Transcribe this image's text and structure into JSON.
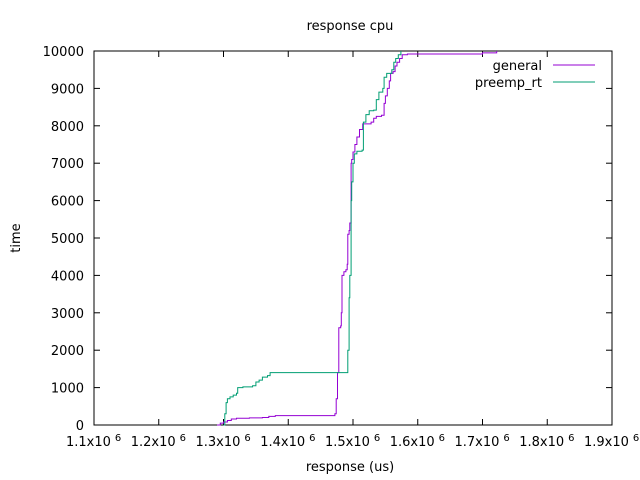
{
  "chart_data": {
    "type": "line",
    "title": "response cpu",
    "xlabel": "response (us)",
    "ylabel": "time",
    "xlim": [
      1100000,
      1900000
    ],
    "ylim": [
      0,
      10000
    ],
    "x_ticks": [
      {
        "value": 1100000,
        "base": "1.1x10",
        "exp": "6"
      },
      {
        "value": 1200000,
        "base": "1.2x10",
        "exp": "6"
      },
      {
        "value": 1300000,
        "base": "1.3x10",
        "exp": "6"
      },
      {
        "value": 1400000,
        "base": "1.4x10",
        "exp": "6"
      },
      {
        "value": 1500000,
        "base": "1.5x10",
        "exp": "6"
      },
      {
        "value": 1600000,
        "base": "1.6x10",
        "exp": "6"
      },
      {
        "value": 1700000,
        "base": "1.7x10",
        "exp": "6"
      },
      {
        "value": 1800000,
        "base": "1.8x10",
        "exp": "6"
      },
      {
        "value": 1900000,
        "base": "1.9x10",
        "exp": "6"
      }
    ],
    "y_ticks": [
      "0",
      "1000",
      "2000",
      "3000",
      "4000",
      "5000",
      "6000",
      "7000",
      "8000",
      "9000",
      "10000"
    ],
    "grid": false,
    "legend_position": "top-right",
    "series": [
      {
        "name": "general",
        "color": "#9400d3",
        "points": [
          [
            1290000,
            0
          ],
          [
            1295000,
            50
          ],
          [
            1300000,
            80
          ],
          [
            1306000,
            120
          ],
          [
            1312000,
            160
          ],
          [
            1320000,
            180
          ],
          [
            1340000,
            190
          ],
          [
            1360000,
            200
          ],
          [
            1370000,
            230
          ],
          [
            1380000,
            250
          ],
          [
            1420000,
            250
          ],
          [
            1450000,
            250
          ],
          [
            1470000,
            250
          ],
          [
            1472000,
            300
          ],
          [
            1474000,
            700
          ],
          [
            1476000,
            1400
          ],
          [
            1478000,
            2600
          ],
          [
            1481000,
            2650
          ],
          [
            1482000,
            3000
          ],
          [
            1483000,
            4000
          ],
          [
            1486000,
            4100
          ],
          [
            1489000,
            4150
          ],
          [
            1491000,
            4300
          ],
          [
            1492000,
            5100
          ],
          [
            1494000,
            5200
          ],
          [
            1495000,
            5400
          ],
          [
            1497000,
            7000
          ],
          [
            1498000,
            7100
          ],
          [
            1500000,
            7300
          ],
          [
            1503000,
            7500
          ],
          [
            1506000,
            7700
          ],
          [
            1510000,
            7900
          ],
          [
            1515000,
            8050
          ],
          [
            1520000,
            8050
          ],
          [
            1528000,
            8100
          ],
          [
            1532000,
            8200
          ],
          [
            1536000,
            8250
          ],
          [
            1544000,
            8280
          ],
          [
            1548000,
            8600
          ],
          [
            1550000,
            8800
          ],
          [
            1553000,
            9000
          ],
          [
            1556000,
            9200
          ],
          [
            1558000,
            9400
          ],
          [
            1562000,
            9450
          ],
          [
            1565000,
            9600
          ],
          [
            1568000,
            9700
          ],
          [
            1572000,
            9800
          ],
          [
            1576000,
            9900
          ],
          [
            1584000,
            9920
          ],
          [
            1600000,
            9920
          ],
          [
            1650000,
            9920
          ],
          [
            1700000,
            9950
          ],
          [
            1722000,
            10000
          ]
        ]
      },
      {
        "name": "preemp_rt",
        "color": "#009e73",
        "points": [
          [
            1300000,
            0
          ],
          [
            1302000,
            300
          ],
          [
            1304000,
            600
          ],
          [
            1306000,
            700
          ],
          [
            1310000,
            750
          ],
          [
            1315000,
            800
          ],
          [
            1320000,
            850
          ],
          [
            1322000,
            1000
          ],
          [
            1330000,
            1020
          ],
          [
            1345000,
            1050
          ],
          [
            1350000,
            1150
          ],
          [
            1355000,
            1200
          ],
          [
            1360000,
            1280
          ],
          [
            1368000,
            1320
          ],
          [
            1372000,
            1400
          ],
          [
            1400000,
            1400
          ],
          [
            1450000,
            1400
          ],
          [
            1490000,
            1400
          ],
          [
            1492000,
            2000
          ],
          [
            1494000,
            3400
          ],
          [
            1495000,
            4000
          ],
          [
            1497000,
            6000
          ],
          [
            1498000,
            6500
          ],
          [
            1500000,
            7000
          ],
          [
            1502000,
            7250
          ],
          [
            1506000,
            7320
          ],
          [
            1514000,
            7350
          ],
          [
            1516000,
            8100
          ],
          [
            1520000,
            8300
          ],
          [
            1525000,
            8400
          ],
          [
            1532000,
            8420
          ],
          [
            1536000,
            8700
          ],
          [
            1540000,
            8900
          ],
          [
            1546000,
            9000
          ],
          [
            1548000,
            9300
          ],
          [
            1552000,
            9400
          ],
          [
            1560000,
            9500
          ],
          [
            1563000,
            9700
          ],
          [
            1566000,
            9800
          ],
          [
            1570000,
            9900
          ],
          [
            1574000,
            10000
          ]
        ]
      }
    ]
  }
}
